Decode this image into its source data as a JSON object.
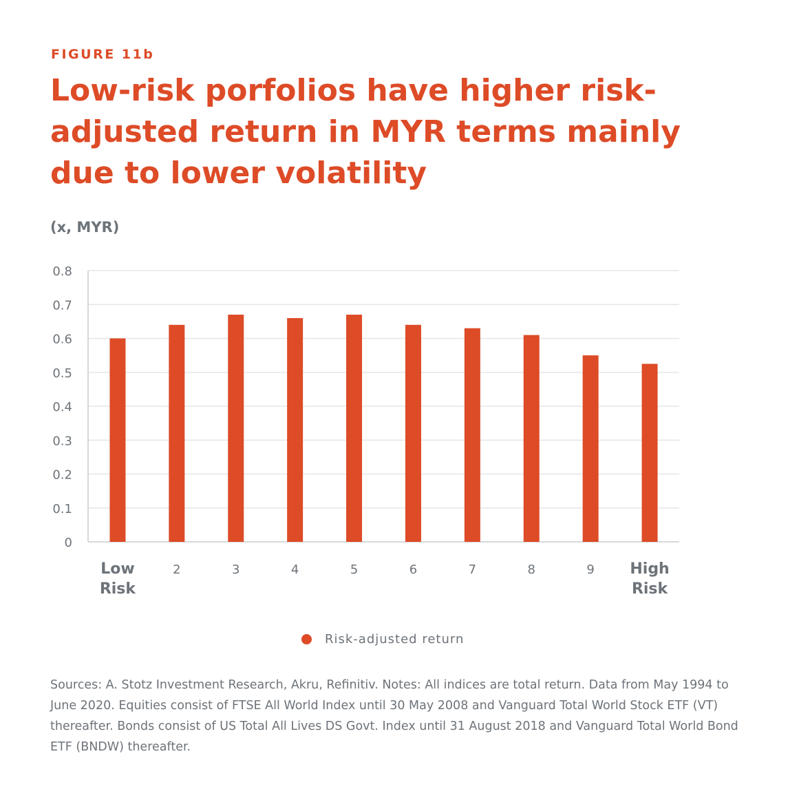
{
  "figure_label": "FIGURE 11b",
  "title": "Low-risk porfolios have higher risk-adjusted return in MYR terms mainly due to lower volatility",
  "unit_label": "(x, MYR)",
  "notes": "Sources: A. Stotz Investment Research, Akru, Refinitiv. Notes: All indices are total return. Data from May 1994 to June 2020. Equities consist of FTSE All World Index until 30 May 2008 and Vanguard Total World Stock ETF (VT) thereafter. Bonds consist of US Total All Lives DS Govt. Index until 31 August 2018 and Vanguard Total World Bond ETF (BNDW) thereafter.",
  "colors": {
    "accent": "#dd4b27",
    "text_gray": "#6d7379",
    "grid": "#e4e6e8"
  },
  "chart_data": {
    "type": "bar",
    "categories": [
      "Low Risk",
      "2",
      "3",
      "4",
      "5",
      "6",
      "7",
      "8",
      "9",
      "High Risk"
    ],
    "series": [
      {
        "name": "Risk-adjusted return",
        "values": [
          0.6,
          0.64,
          0.67,
          0.66,
          0.67,
          0.64,
          0.63,
          0.61,
          0.55,
          0.525
        ]
      }
    ],
    "ylim": [
      0,
      0.8
    ],
    "yticks": [
      "0",
      "0.1",
      "0.2",
      "0.3",
      "0.4",
      "0.5",
      "0.6",
      "0.7",
      "0.8"
    ],
    "grid": true,
    "legend": "bottom-center"
  }
}
